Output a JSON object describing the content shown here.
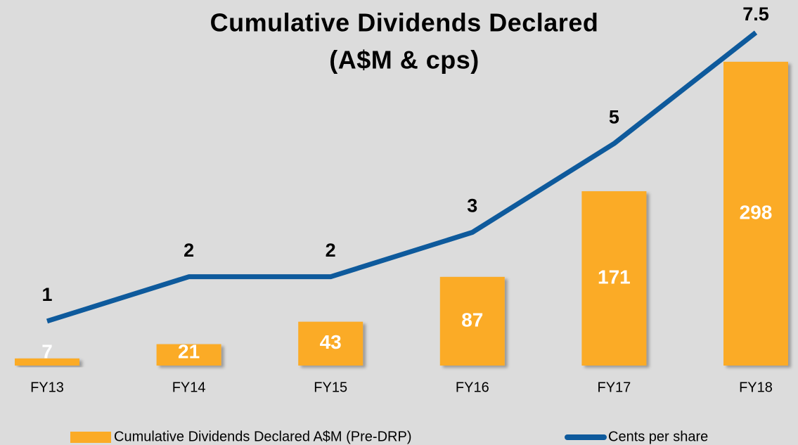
{
  "chart_data": {
    "type": "combo",
    "title": "Cumulative Dividends Declared",
    "subtitle": "(A$M & cps)",
    "categories": [
      "FY13",
      "FY14",
      "FY15",
      "FY16",
      "FY17",
      "FY18"
    ],
    "series": [
      {
        "name": "Cumulative Dividends Declared A$M (Pre-DRP)",
        "type": "bar",
        "color": "#fbab26",
        "values": [
          7,
          21,
          43,
          87,
          171,
          298
        ]
      },
      {
        "name": "Cents per share",
        "type": "line",
        "axis": "y2",
        "color": "#0e5a9c",
        "values": [
          1,
          2,
          2,
          3,
          5,
          7.5
        ]
      }
    ],
    "ylim": [
      0,
      331
    ],
    "y2lim": [
      0,
      7.6
    ],
    "grid": false,
    "legend": "bottom"
  }
}
